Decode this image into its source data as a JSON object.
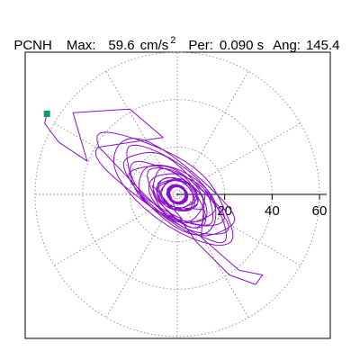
{
  "header": {
    "station": "PCNH",
    "max_label": "Max:",
    "max_value": "59.6",
    "max_unit": "cm/s",
    "max_unit_exp": "2",
    "per_label": "Per:",
    "per_value": "0.090 s",
    "ang_label": "Ang:",
    "ang_value": "145.4"
  },
  "colors": {
    "trace": "#8a10c8",
    "start_marker": "#0a9a7a",
    "grid": "#8a8a8a",
    "axis": "#000000"
  },
  "chart_data": {
    "type": "scatter",
    "title": "",
    "radial_ticks": [
      20,
      40,
      60
    ],
    "radial_range": [
      0,
      60
    ],
    "grid": true,
    "grid_rings": [
      20,
      40,
      60
    ],
    "grid_spokes_deg": [
      0,
      30,
      60,
      90,
      120,
      150,
      180,
      210,
      240,
      270,
      300,
      330
    ],
    "start_point": {
      "x": -55.0,
      "y": 34.0
    },
    "series": [
      {
        "loops": [
          {
            "cx": -3,
            "cy": 2,
            "rx": 34,
            "ry": 12,
            "angle": 145.4,
            "turns": 2.0,
            "phase": 0.2
          },
          {
            "cx": -2,
            "cy": 1,
            "rx": 27,
            "ry": 10,
            "angle": 140,
            "turns": 2.5,
            "phase": 1.1
          },
          {
            "cx": -1,
            "cy": 0,
            "rx": 20,
            "ry": 9,
            "angle": 150,
            "turns": 3.0,
            "phase": 2.0
          },
          {
            "cx": 0,
            "cy": -1,
            "rx": 14,
            "ry": 8,
            "angle": 135,
            "turns": 3.5,
            "phase": 0.5
          },
          {
            "cx": 0,
            "cy": 0,
            "rx": 8,
            "ry": 6,
            "angle": 155,
            "turns": 6.0,
            "phase": 1.7
          },
          {
            "cx": 0,
            "cy": 0,
            "rx": 4,
            "ry": 3.5,
            "angle": 145,
            "turns": 10.0,
            "phase": 0.3
          }
        ],
        "tail": [
          {
            "x": -55.0,
            "y": 34.0
          },
          {
            "x": -56.0,
            "y": 30.0
          },
          {
            "x": -50.0,
            "y": 22.0
          },
          {
            "x": -38.0,
            "y": 14.0
          },
          {
            "x": -44.0,
            "y": 34.5
          },
          {
            "x": -20.0,
            "y": 36.0
          },
          {
            "x": -6.0,
            "y": 24.0
          }
        ],
        "lower_lobe": [
          {
            "x": 10.0,
            "y": -18.0
          },
          {
            "x": 26.0,
            "y": -32.0
          },
          {
            "x": 36.0,
            "y": -34.0
          },
          {
            "x": 33.0,
            "y": -38.0
          },
          {
            "x": 22.0,
            "y": -34.0
          },
          {
            "x": 8.0,
            "y": -20.0
          }
        ]
      }
    ]
  }
}
